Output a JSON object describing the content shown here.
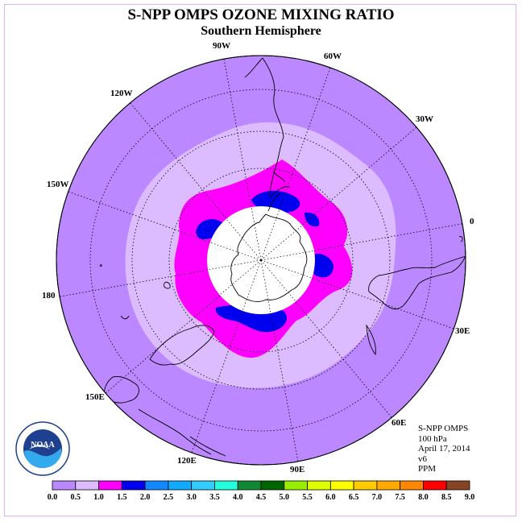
{
  "title": "S-NPP OMPS OZONE MIXING RATIO",
  "subtitle": "Southern Hemisphere",
  "longitude_labels": [
    "90W",
    "60W",
    "30W",
    "0",
    "30E",
    "60E",
    "90E",
    "120E",
    "150E",
    "180",
    "150W",
    "120W"
  ],
  "info": {
    "instrument": "S-NPP OMPS",
    "level": "100 hPa",
    "date": "April 17, 2014",
    "version": "v6",
    "units": "PPM"
  },
  "logo_text": "NOAA",
  "colorbar": {
    "ticks": [
      "0.0",
      "0.5",
      "1.0",
      "1.5",
      "2.0",
      "2.5",
      "3.0",
      "3.5",
      "4.0",
      "4.5",
      "5.0",
      "5.5",
      "6.0",
      "6.5",
      "7.0",
      "7.5",
      "8.0",
      "8.5",
      "9.0"
    ],
    "colors": [
      "#bb88ff",
      "#ddbbff",
      "#ff00ff",
      "#0000ee",
      "#1188ff",
      "#11aaff",
      "#33ccff",
      "#22ffdd",
      "#118833",
      "#006600",
      "#99ee00",
      "#ddff00",
      "#ffff00",
      "#ffcc00",
      "#ffaa00",
      "#ff8800",
      "#ff0000",
      "#884422"
    ]
  },
  "map": {
    "background_color": "#bb88ff",
    "rings": [
      {
        "range_ppm": "0.5 - 1.0",
        "color": "#ddbbff"
      },
      {
        "range_ppm": "1.0 - 1.5",
        "color": "#ff00ff"
      },
      {
        "range_ppm": "1.5 - 2.0",
        "color": "#0000ee"
      }
    ],
    "polar_no_data_color": "#ffffff"
  }
}
